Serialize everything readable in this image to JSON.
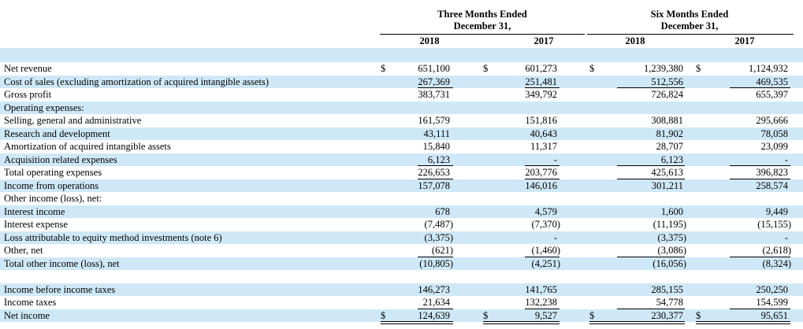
{
  "header": {
    "three_months": [
      "Three Months Ended",
      "December 31,"
    ],
    "six_months": [
      "Six Months Ended",
      "December 31,"
    ],
    "years": [
      "2018",
      "2017",
      "2018",
      "2017"
    ]
  },
  "currency_symbol": "$",
  "rows": [
    {
      "label": "Net revenue",
      "values": [
        "651,100",
        "601,273",
        "1,239,380",
        "1,124,932"
      ],
      "dollar": true,
      "shade": false
    },
    {
      "label": "Cost of sales (excluding amortization of acquired intangible assets)",
      "values": [
        "267,369",
        "251,481",
        "512,556",
        "469,535"
      ],
      "dollar": false,
      "shade": true,
      "underline": true
    },
    {
      "label": "Gross profit",
      "values": [
        "383,731",
        "349,792",
        "726,824",
        "655,397"
      ],
      "dollar": false,
      "shade": false
    },
    {
      "label": "Operating expenses:",
      "values": [
        "",
        "",
        "",
        ""
      ],
      "dollar": false,
      "shade": true
    },
    {
      "label": "Selling, general and administrative",
      "values": [
        "161,579",
        "151,816",
        "308,881",
        "295,666"
      ],
      "dollar": false,
      "shade": false
    },
    {
      "label": "Research and development",
      "values": [
        "43,111",
        "40,643",
        "81,902",
        "78,058"
      ],
      "dollar": false,
      "shade": true
    },
    {
      "label": "Amortization of acquired intangible assets",
      "values": [
        "15,840",
        "11,317",
        "28,707",
        "23,099"
      ],
      "dollar": false,
      "shade": false
    },
    {
      "label": "Acquisition related expenses",
      "values": [
        "6,123",
        "-",
        "6,123",
        "-"
      ],
      "dollar": false,
      "shade": true,
      "underline": true
    },
    {
      "label": "Total operating expenses",
      "values": [
        "226,653",
        "203,776",
        "425,613",
        "396,823"
      ],
      "dollar": false,
      "shade": false,
      "underline": true
    },
    {
      "label": "Income from operations",
      "values": [
        "157,078",
        "146,016",
        "301,211",
        "258,574"
      ],
      "dollar": false,
      "shade": true
    },
    {
      "label": "Other income (loss), net:",
      "values": [
        "",
        "",
        "",
        ""
      ],
      "dollar": false,
      "shade": false
    },
    {
      "label": "Interest income",
      "values": [
        "678",
        "4,579",
        "1,600",
        "9,449"
      ],
      "dollar": false,
      "shade": true
    },
    {
      "label": "Interest expense",
      "values": [
        "(7,487)",
        "(7,370)",
        "(11,195)",
        "(15,155)"
      ],
      "dollar": false,
      "shade": false
    },
    {
      "label": "Loss attributable to equity method investments (note 6)",
      "values": [
        "(3,375)",
        "-",
        "(3,375)",
        "-"
      ],
      "dollar": false,
      "shade": true
    },
    {
      "label": "Other, net",
      "values": [
        "(621)",
        "(1,460)",
        "(3,086)",
        "(2,618)"
      ],
      "dollar": false,
      "shade": false,
      "underline": true
    },
    {
      "label": "Total other income (loss), net",
      "values": [
        "(10,805)",
        "(4,251)",
        "(16,056)",
        "(8,324)"
      ],
      "dollar": false,
      "shade": true
    },
    {
      "label": "",
      "values": [
        "",
        "",
        "",
        ""
      ],
      "dollar": false,
      "shade": false,
      "spacer": true
    },
    {
      "label": "Income before income taxes",
      "values": [
        "146,273",
        "141,765",
        "285,155",
        "250,250"
      ],
      "dollar": false,
      "shade": true
    },
    {
      "label": "Income taxes",
      "values": [
        "21,634",
        "132,238",
        "54,778",
        "154,599"
      ],
      "dollar": false,
      "shade": false,
      "underline": true
    },
    {
      "label": "Net income",
      "values": [
        "124,639",
        "9,527",
        "230,377",
        "95,651"
      ],
      "dollar": true,
      "shade": true,
      "double_underline": true
    }
  ]
}
